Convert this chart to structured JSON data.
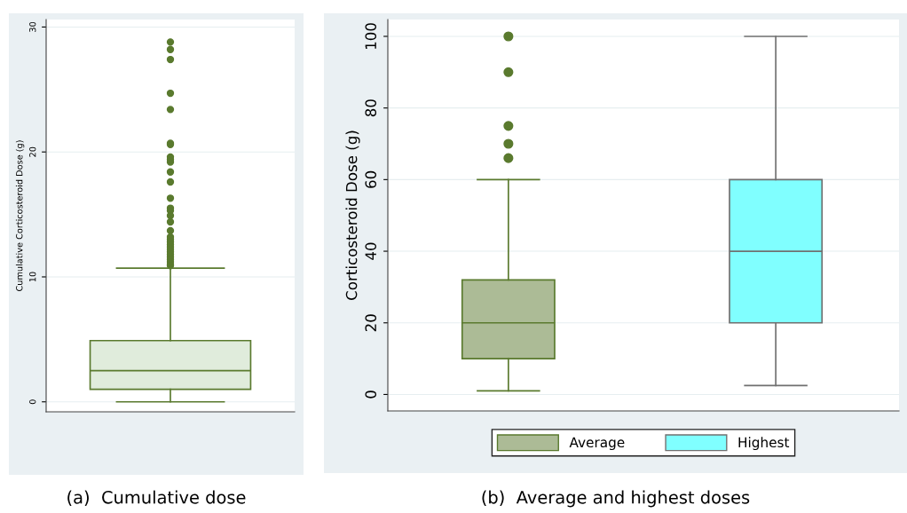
{
  "chart_data": [
    {
      "type": "box",
      "title": "(a)  Cumulative dose",
      "ylabel": "Cumulative Corticosteroid Dose (g)",
      "categories": [
        null
      ],
      "series": [
        {
          "color": "#e0ecdc",
          "boxes": [
            {
              "low": 0,
              "q1": 1.0,
              "median": 2.5,
              "q3": 4.9,
              "high": 10.7,
              "outliers": [
                28.8,
                28.2,
                27.4,
                24.7,
                23.4,
                20.7,
                20.6,
                19.6,
                19.4,
                19.2,
                18.4,
                17.6,
                16.3,
                15.5,
                15.3,
                14.9,
                14.4,
                13.7,
                13.2,
                13.0,
                12.8,
                12.6,
                12.4,
                12.2,
                12.0,
                11.8,
                11.6,
                11.4,
                11.2,
                11.0,
                10.9
              ]
            }
          ]
        }
      ],
      "ylim": [
        -0.8,
        30.6
      ],
      "yticks": [
        0,
        10,
        20,
        30
      ],
      "grid": "y",
      "legend": false,
      "tick_labels": "y"
    },
    {
      "type": "box",
      "title": "(b)  Average and highest doses",
      "ylabel": "Corticosteroid Dose (g)",
      "categories": [
        null
      ],
      "series": [
        {
          "name": "Average",
          "color": "#acbb96",
          "boxes": [
            {
              "low": 1,
              "q1": 10,
              "median": 20,
              "q3": 32,
              "high": 60,
              "outliers": [
                100,
                90,
                75,
                70,
                66
              ]
            }
          ]
        },
        {
          "name": "Highest",
          "color": "#80ffff",
          "boxes": [
            {
              "low": 2.5,
              "q1": 20,
              "median": 40,
              "q3": 60,
              "high": 100
            }
          ]
        }
      ],
      "ylim": [
        -4.6,
        104.7
      ],
      "yticks": [
        0,
        20,
        40,
        60,
        80,
        100
      ],
      "grid": "y",
      "legend": "bottom",
      "tick_labels": "y"
    }
  ]
}
